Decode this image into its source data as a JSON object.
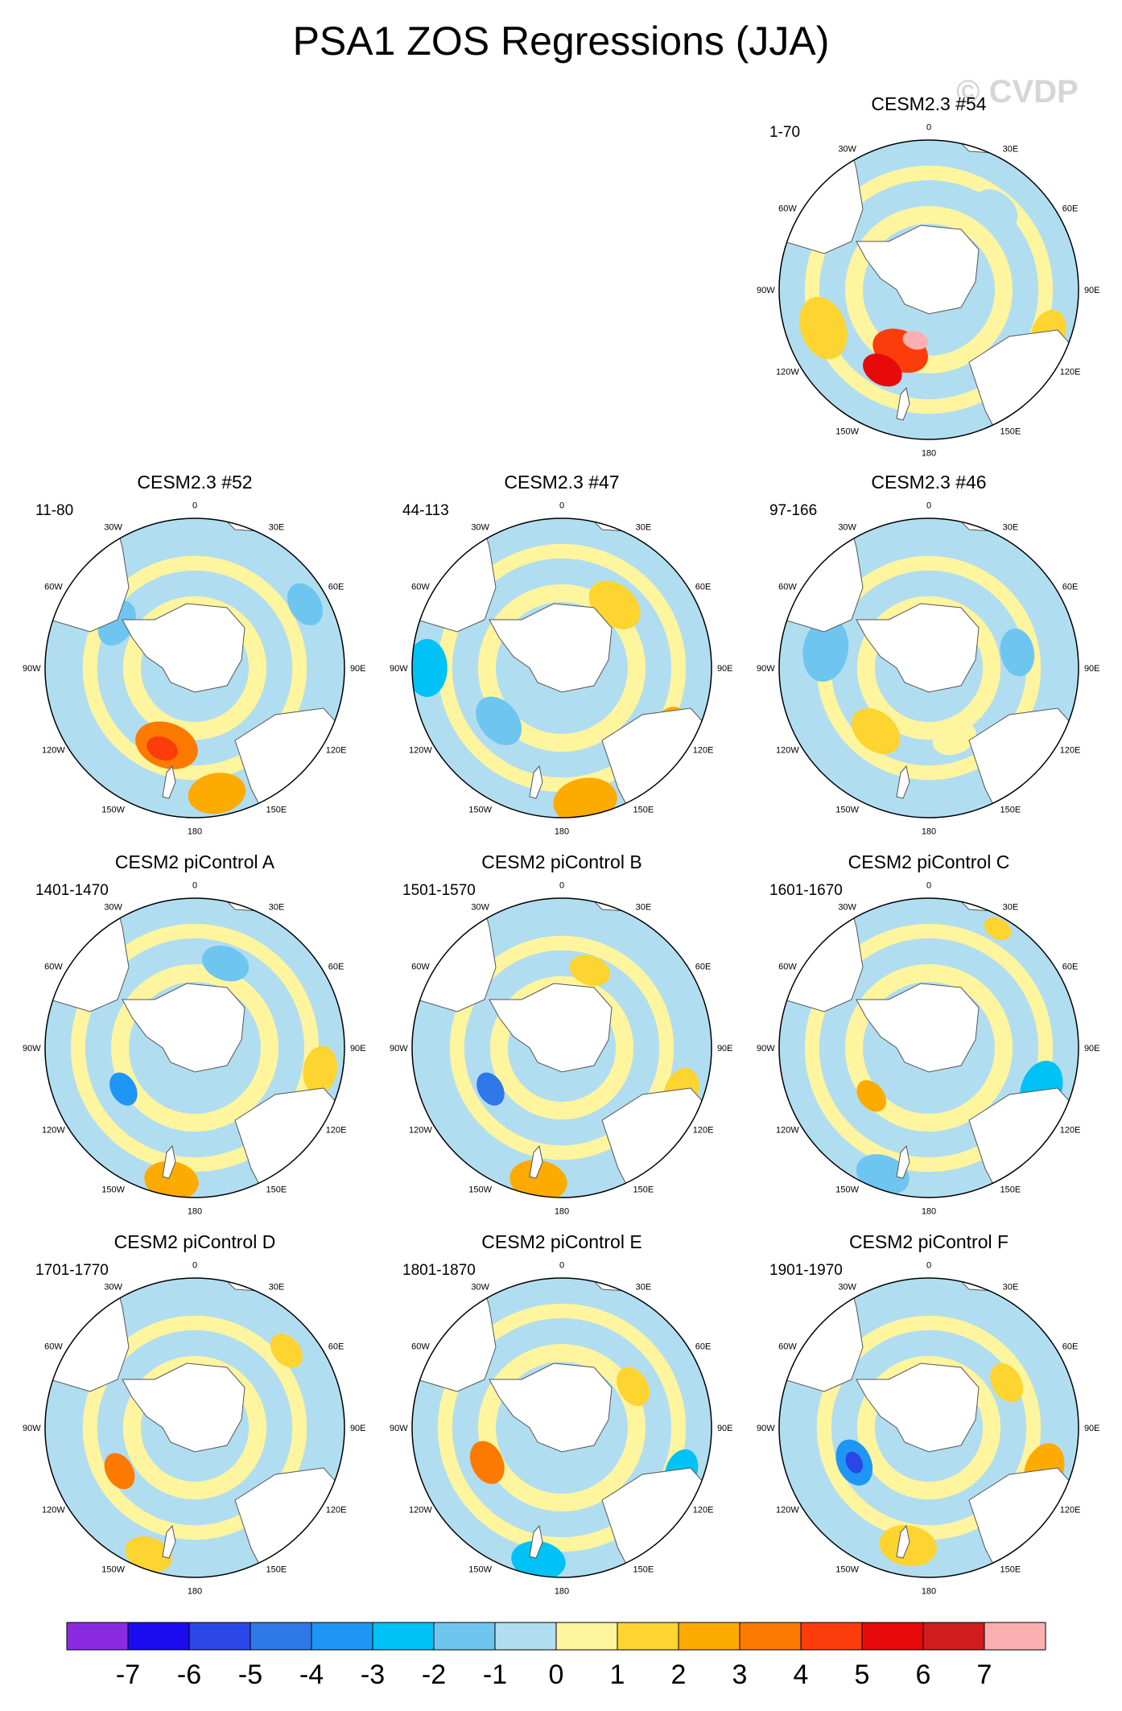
{
  "title": "PSA1 ZOS Regressions (JJA)",
  "watermark": "© CVDP",
  "longitude_labels": [
    "0",
    "30E",
    "60E",
    "90E",
    "120E",
    "150E",
    "180",
    "150W",
    "120W",
    "90W",
    "60W",
    "30W"
  ],
  "panels": [
    {
      "title": "CESM2.3 #54",
      "years": "1-70"
    },
    {
      "title": "CESM2.3 #52",
      "years": "11-80"
    },
    {
      "title": "CESM2.3 #47",
      "years": "44-113"
    },
    {
      "title": "CESM2.3 #46",
      "years": "97-166"
    },
    {
      "title": "CESM2 piControl A",
      "years": "1401-1470"
    },
    {
      "title": "CESM2 piControl B",
      "years": "1501-1570"
    },
    {
      "title": "CESM2 piControl C",
      "years": "1601-1670"
    },
    {
      "title": "CESM2 piControl D",
      "years": "1701-1770"
    },
    {
      "title": "CESM2 piControl E",
      "years": "1801-1870"
    },
    {
      "title": "CESM2 piControl F",
      "years": "1901-1970"
    }
  ],
  "colorbar": {
    "labels": [
      "-7",
      "-6",
      "-5",
      "-4",
      "-3",
      "-2",
      "-1",
      "0",
      "1",
      "2",
      "3",
      "4",
      "5",
      "6",
      "7"
    ],
    "colors": [
      "#8a2be2",
      "#1c0df0",
      "#2b46e6",
      "#2f78e8",
      "#1e96f5",
      "#00c2f6",
      "#6ec6f0",
      "#b1ddf1",
      "#fff59e",
      "#fdd430",
      "#fdab00",
      "#fc7a00",
      "#fc3c0a",
      "#e80a0a",
      "#d01c1c",
      "#fbafb1"
    ]
  },
  "style": {
    "ocean_cool": "#b1ddf1",
    "ocean_warm": "#fff59e",
    "land": "#ffffff",
    "coast": "#555555"
  }
}
